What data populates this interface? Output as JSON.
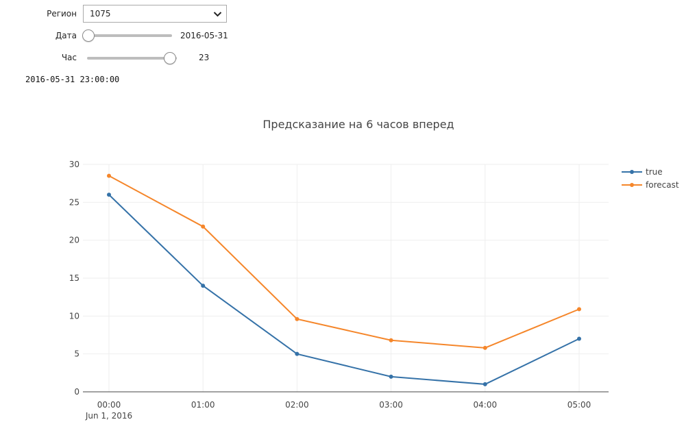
{
  "controls": {
    "region": {
      "label": "Регион",
      "value": "1075"
    },
    "date": {
      "label": "Дата",
      "value": "2016-05-31",
      "position": 0.0
    },
    "hour": {
      "label": "Час",
      "value": "23",
      "position": 1.0
    },
    "datetime_readout": "2016-05-31 23:00:00"
  },
  "chart_data": {
    "type": "line",
    "title": "Предсказание на 6 часов вперед",
    "xlabel": "",
    "ylabel": "",
    "categories": [
      "00:00",
      "01:00",
      "02:00",
      "03:00",
      "04:00",
      "05:00"
    ],
    "x_sublabel": "Jun 1, 2016",
    "ylim": [
      0,
      30
    ],
    "yticks": [
      0,
      5,
      10,
      15,
      20,
      25,
      30
    ],
    "grid": true,
    "legend_position": "top-right",
    "series": [
      {
        "name": "true",
        "color": "#3572a8",
        "values": [
          26,
          14,
          5,
          2,
          1,
          7
        ]
      },
      {
        "name": "forecast",
        "color": "#f5862a",
        "values": [
          28.5,
          21.8,
          9.6,
          6.8,
          5.8,
          10.9
        ]
      }
    ]
  }
}
